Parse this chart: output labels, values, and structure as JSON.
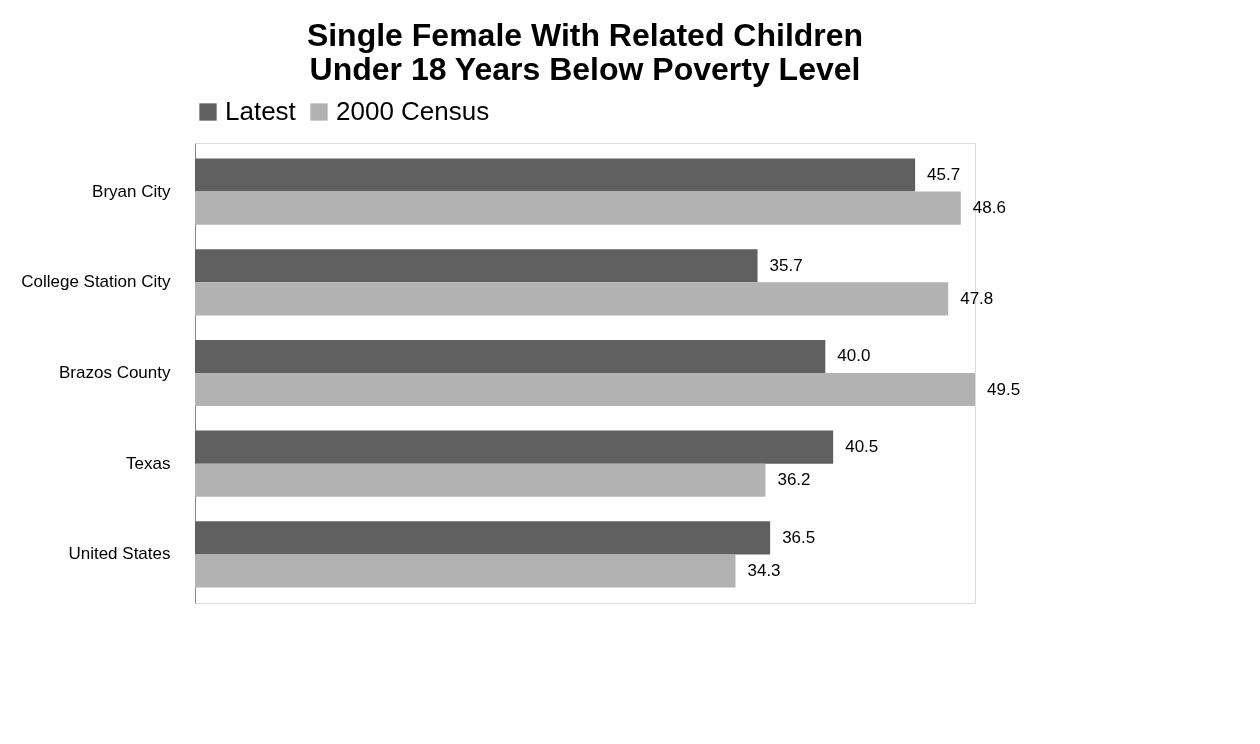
{
  "chart_data": {
    "type": "bar",
    "orientation": "horizontal",
    "title": "Single Female With Related Children Under 18 Years Below Poverty Level",
    "categories": [
      "Bryan City",
      "College Station City",
      "Brazos County",
      "Texas",
      "United States"
    ],
    "series": [
      {
        "name": "Latest",
        "color": "#606060",
        "values": [
          45.7,
          35.7,
          40.0,
          40.5,
          36.5
        ],
        "value_labels": [
          "45.7",
          "35.7",
          "40.0",
          "40.5",
          "36.5"
        ]
      },
      {
        "name": "2000 Census",
        "color": "#b2b2b2",
        "values": [
          48.6,
          47.8,
          49.5,
          36.2,
          34.3
        ],
        "value_labels": [
          "48.6",
          "47.8",
          "49.5",
          "36.2",
          "34.3"
        ]
      }
    ],
    "legend": "top",
    "grid": false
  }
}
